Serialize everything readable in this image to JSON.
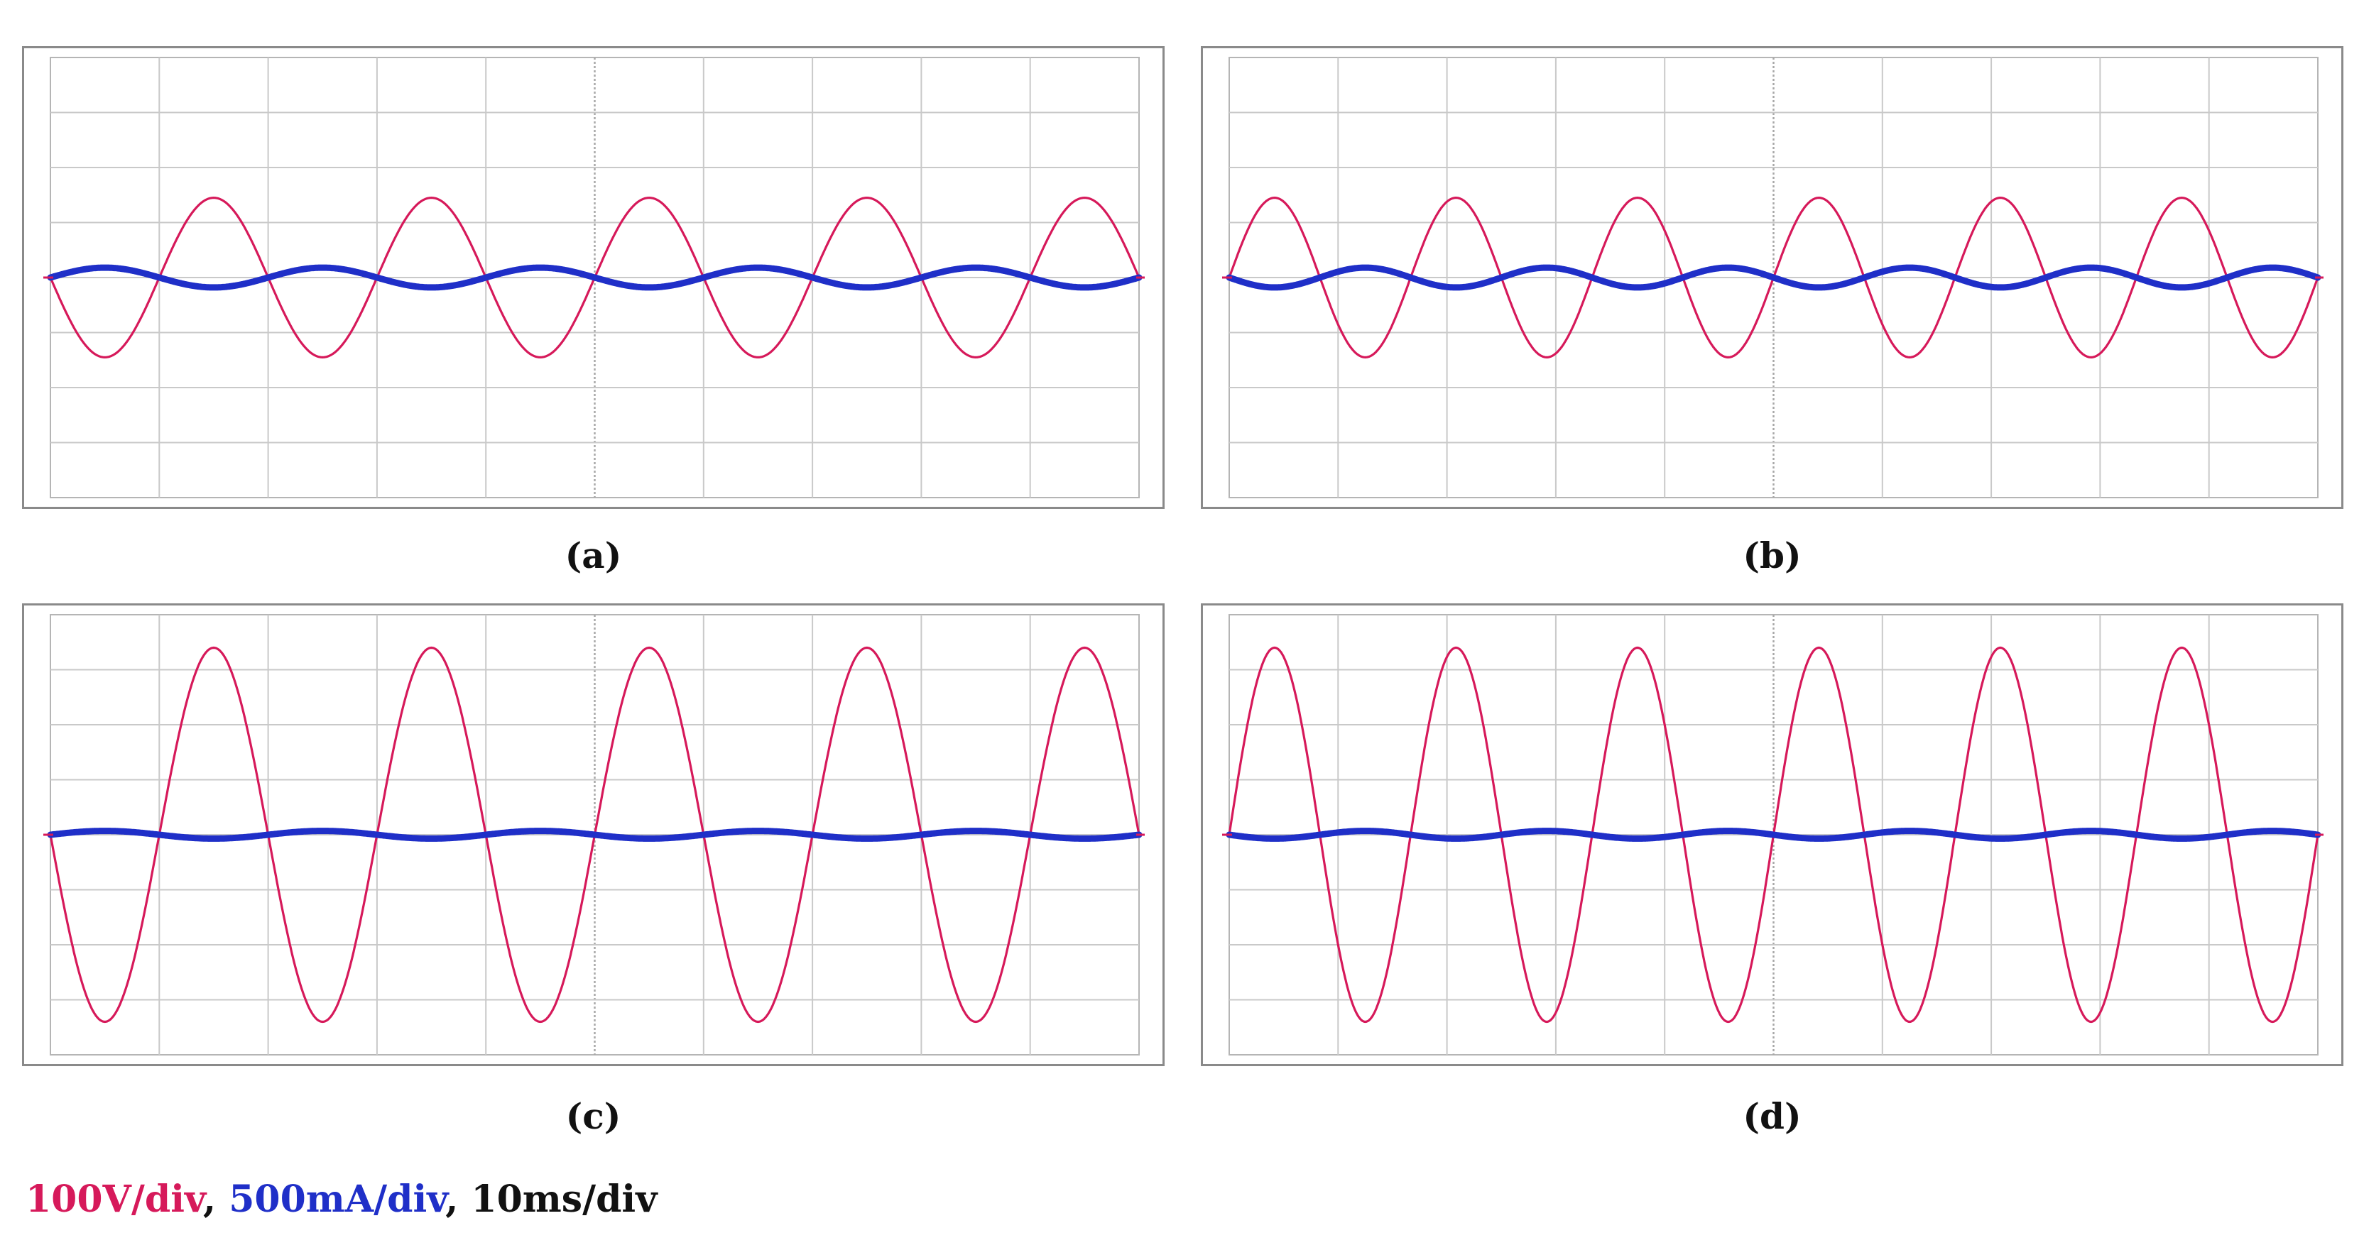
{
  "colors": {
    "voltage": "#d6195a",
    "current": "#1f2fc8",
    "grid": "#c9c9c9",
    "frame": "#8a8a8a",
    "text": "#111111"
  },
  "scale_legend": {
    "voltage": "100V/div",
    "sep1": ", ",
    "current": "500mA/div",
    "sep2": ", ",
    "time": "10ms/div"
  },
  "captions": {
    "a": "(a)",
    "b": "(b)",
    "c": "(c)",
    "d": "(d)"
  },
  "chart_data": [
    {
      "id": "a",
      "type": "line",
      "caption": "(a)",
      "title": "",
      "xlabel": "",
      "ylabel": "",
      "xlim": [
        0,
        100
      ],
      "ylim": [
        -4,
        4
      ],
      "x_unit": "ms",
      "grid": true,
      "series": [
        {
          "name": "100V/div",
          "channel": "voltage",
          "color": "#d6195a",
          "amplitude_div": 1.45,
          "frequency_hz": 50,
          "phase_deg": 180
        },
        {
          "name": "500mA/div",
          "channel": "current",
          "color": "#1f2fc8",
          "amplitude_div": 0.18,
          "frequency_hz": 50,
          "phase_deg": 0
        }
      ]
    },
    {
      "id": "b",
      "type": "line",
      "caption": "(b)",
      "title": "",
      "xlabel": "",
      "ylabel": "",
      "xlim": [
        0,
        100
      ],
      "ylim": [
        -4,
        4
      ],
      "x_unit": "ms",
      "grid": true,
      "series": [
        {
          "name": "100V/div",
          "channel": "voltage",
          "color": "#d6195a",
          "amplitude_div": 1.45,
          "frequency_hz": 60,
          "phase_deg": 0
        },
        {
          "name": "500mA/div",
          "channel": "current",
          "color": "#1f2fc8",
          "amplitude_div": 0.18,
          "frequency_hz": 60,
          "phase_deg": 180
        }
      ]
    },
    {
      "id": "c",
      "type": "line",
      "caption": "(c)",
      "title": "",
      "xlabel": "",
      "ylabel": "",
      "xlim": [
        0,
        100
      ],
      "ylim": [
        -4,
        4
      ],
      "x_unit": "ms",
      "grid": true,
      "series": [
        {
          "name": "100V/div",
          "channel": "voltage",
          "color": "#d6195a",
          "amplitude_div": 3.4,
          "frequency_hz": 50,
          "phase_deg": 180
        },
        {
          "name": "500mA/div",
          "channel": "current",
          "color": "#1f2fc8",
          "amplitude_div": 0.07,
          "frequency_hz": 50,
          "phase_deg": 0
        }
      ]
    },
    {
      "id": "d",
      "type": "line",
      "caption": "(d)",
      "title": "",
      "xlabel": "",
      "ylabel": "",
      "xlim": [
        0,
        100
      ],
      "ylim": [
        -4,
        4
      ],
      "x_unit": "ms",
      "grid": true,
      "series": [
        {
          "name": "100V/div",
          "channel": "voltage",
          "color": "#d6195a",
          "amplitude_div": 3.4,
          "frequency_hz": 60,
          "phase_deg": 0
        },
        {
          "name": "500mA/div",
          "channel": "current",
          "color": "#1f2fc8",
          "amplitude_div": 0.07,
          "frequency_hz": 60,
          "phase_deg": 180
        }
      ]
    }
  ]
}
